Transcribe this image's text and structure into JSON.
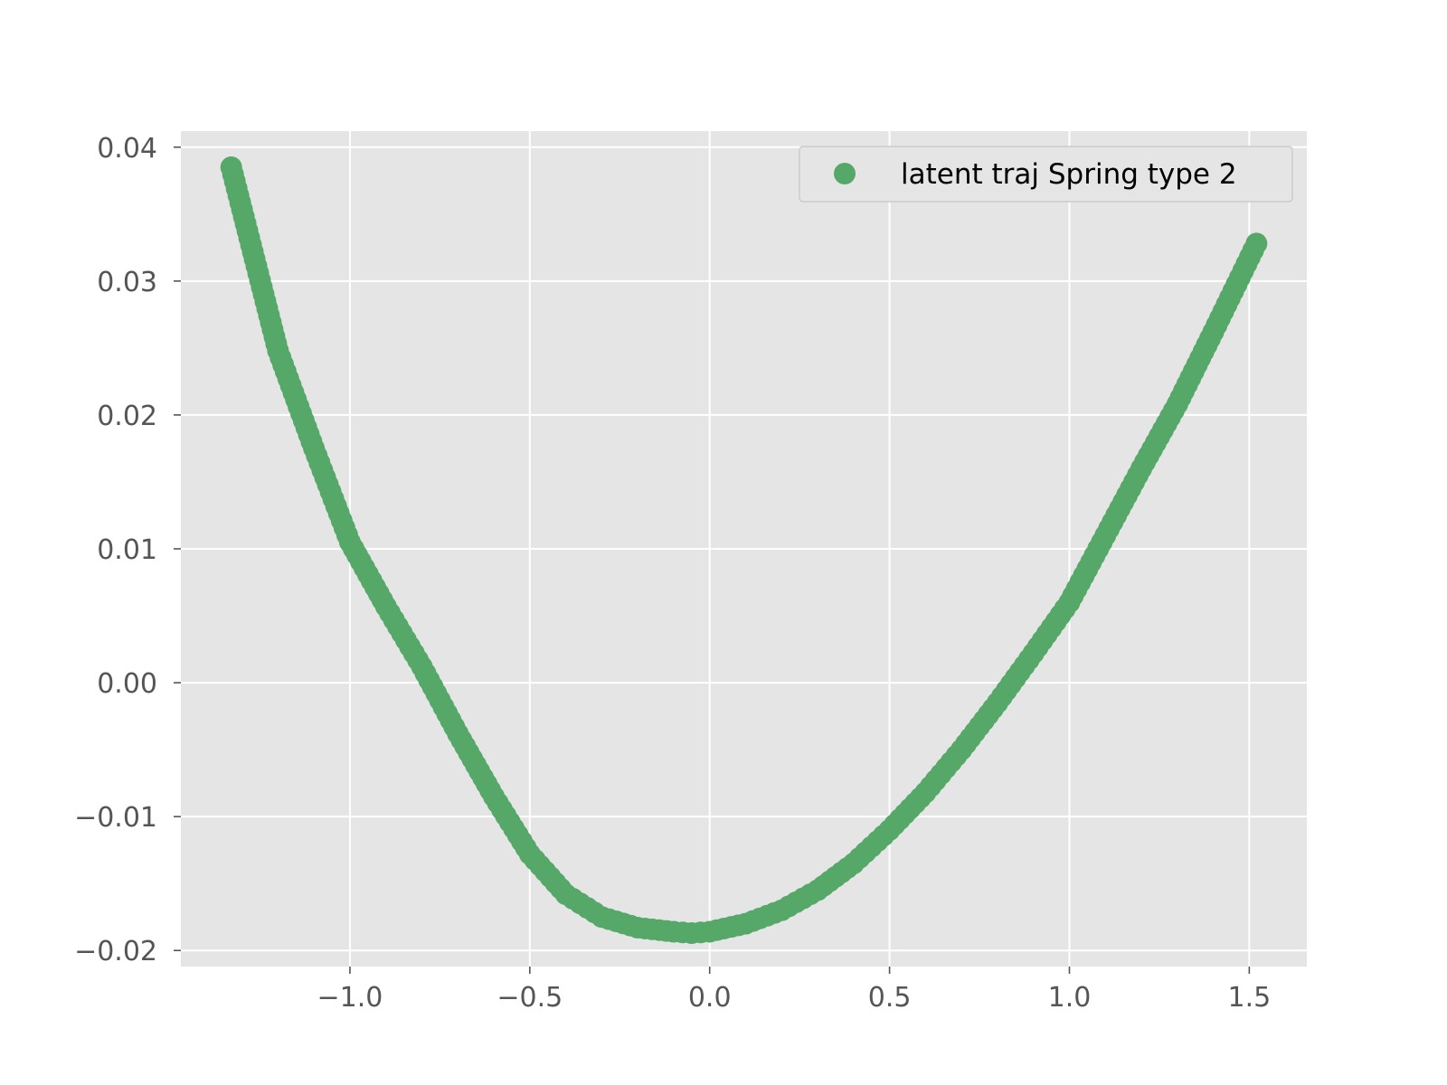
{
  "chart_data": {
    "type": "scatter",
    "title": "",
    "xlabel": "",
    "ylabel": "",
    "xlim": [
      -1.47,
      1.66
    ],
    "ylim": [
      -0.0212,
      0.0412
    ],
    "x_ticks": [
      -1.0,
      -0.5,
      0.0,
      0.5,
      1.0,
      1.5
    ],
    "x_tick_labels": [
      "−1.0",
      "−0.5",
      "0.0",
      "0.5",
      "1.0",
      "1.5"
    ],
    "y_ticks": [
      -0.02,
      -0.01,
      0.0,
      0.01,
      0.02,
      0.03,
      0.04
    ],
    "y_tick_labels": [
      "−0.02",
      "−0.01",
      "0.00",
      "0.01",
      "0.02",
      "0.03",
      "0.04"
    ],
    "grid": true,
    "legend": {
      "position": "top-right",
      "entries": [
        {
          "label": "latent traj Spring type 2",
          "color": "#55a868",
          "marker": "circle"
        }
      ]
    },
    "colors": {
      "series": "#55a868",
      "axes_bg": "#e5e5e5",
      "grid": "#ffffff",
      "tick_text": "#555555"
    },
    "series": [
      {
        "name": "latent traj Spring type 2",
        "x": [
          -1.33,
          -1.2,
          -1.1,
          -1.0,
          -0.9,
          -0.8,
          -0.7,
          -0.6,
          -0.5,
          -0.4,
          -0.3,
          -0.2,
          -0.1,
          -0.05,
          0.0,
          0.1,
          0.2,
          0.3,
          0.4,
          0.5,
          0.6,
          0.7,
          0.8,
          0.9,
          1.0,
          1.1,
          1.2,
          1.3,
          1.4,
          1.52
        ],
        "y": [
          0.0385,
          0.0248,
          0.0175,
          0.0105,
          0.0057,
          0.0012,
          -0.0038,
          -0.0085,
          -0.0128,
          -0.0158,
          -0.0175,
          -0.0183,
          -0.0186,
          -0.0187,
          -0.0186,
          -0.018,
          -0.017,
          -0.0155,
          -0.0135,
          -0.011,
          -0.0082,
          -0.005,
          -0.0015,
          0.0022,
          0.006,
          0.011,
          0.016,
          0.0208,
          0.0262,
          0.0328
        ]
      }
    ]
  }
}
